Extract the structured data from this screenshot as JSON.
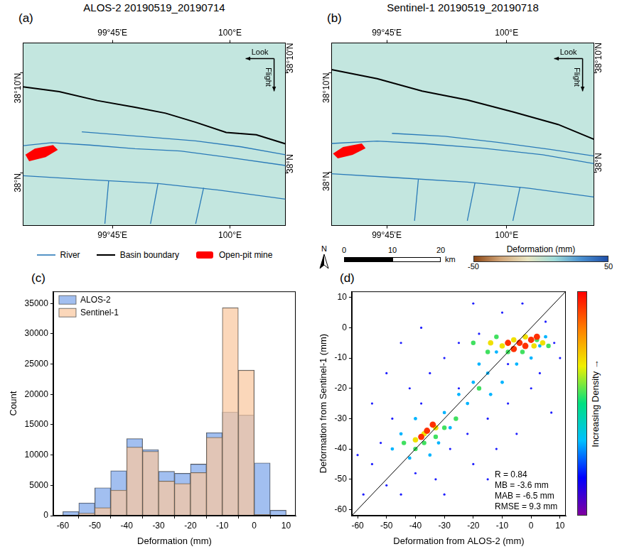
{
  "chart_data": [
    {
      "type": "map",
      "panel": "(a)",
      "title": "ALOS-2 20190519_20190714",
      "xlim": [
        99.56,
        100.118
      ],
      "ylim": [
        37.913,
        38.217
      ],
      "xticks": [
        {
          "value": 99.75,
          "label": "99°45'E"
        },
        {
          "value": 100,
          "label": "100°E"
        }
      ],
      "yticks": [
        {
          "value": 38,
          "label": "38°N"
        },
        {
          "value": 38.1667,
          "label": "38°10'N"
        }
      ],
      "series": [
        {
          "name": "River",
          "type": "river",
          "color": "#2a7ab8",
          "lines": [
            [
              [
                99.56,
                38.046
              ],
              [
                99.621,
                38.051
              ],
              [
                99.702,
                38.047
              ],
              [
                99.798,
                38.041
              ],
              [
                99.895,
                38.037
              ],
              [
                99.992,
                38.027
              ],
              [
                100.118,
                38.013
              ]
            ],
            [
              [
                99.685,
                38.069
              ],
              [
                99.815,
                38.061
              ],
              [
                99.927,
                38.054
              ],
              [
                100.024,
                38.044
              ],
              [
                100.118,
                38.031
              ]
            ],
            [
              [
                99.56,
                37.996
              ],
              [
                99.685,
                37.99
              ],
              [
                99.847,
                37.983
              ],
              [
                99.976,
                37.972
              ],
              [
                100.118,
                37.957
              ]
            ],
            [
              [
                99.734,
                37.916
              ],
              [
                99.742,
                37.987
              ]
            ],
            [
              [
                99.831,
                37.916
              ],
              [
                99.847,
                37.983
              ]
            ],
            [
              [
                99.927,
                37.916
              ],
              [
                99.944,
                37.976
              ]
            ]
          ]
        },
        {
          "name": "Basin boundary",
          "type": "boundary",
          "color": "#000000",
          "lines": [
            [
              [
                99.56,
                38.144
              ],
              [
                99.637,
                38.136
              ],
              [
                99.718,
                38.121
              ],
              [
                99.798,
                38.11
              ],
              [
                99.863,
                38.1
              ],
              [
                99.927,
                38.085
              ],
              [
                99.992,
                38.068
              ],
              [
                100.056,
                38.064
              ],
              [
                100.118,
                38.049
              ]
            ]
          ]
        },
        {
          "name": "Open-pit mine",
          "type": "polygon",
          "color": "#ff0000",
          "lines": [
            [
              [
                99.565,
                38.031
              ],
              [
                99.585,
                38.041
              ],
              [
                99.624,
                38.047
              ],
              [
                99.634,
                38.039
              ],
              [
                99.608,
                38.027
              ],
              [
                99.573,
                38.02
              ]
            ]
          ]
        }
      ],
      "annotations": [
        "Look",
        "Flight"
      ],
      "legend": "bottom"
    },
    {
      "type": "map",
      "panel": "(b)",
      "title": "Sentinel-1 20190519_20190718",
      "xlim": [
        99.635,
        100.182
      ],
      "ylim": [
        37.91,
        38.217
      ],
      "xticks": [
        {
          "value": 99.75,
          "label": "99°45'E"
        },
        {
          "value": 100,
          "label": "100°E"
        }
      ],
      "yticks": [
        {
          "value": 38,
          "label": "38°N"
        },
        {
          "value": 38.1667,
          "label": "38°10'N"
        }
      ],
      "series": [
        {
          "name": "River",
          "type": "river",
          "color": "#2a7ab8",
          "lines": [
            [
              [
                99.635,
                38.048
              ],
              [
                99.73,
                38.052
              ],
              [
                99.824,
                38.048
              ],
              [
                99.95,
                38.04
              ],
              [
                100.075,
                38.029
              ],
              [
                100.182,
                38.014
              ]
            ],
            [
              [
                99.761,
                38.065
              ],
              [
                99.871,
                38.06
              ],
              [
                99.981,
                38.05
              ],
              [
                100.091,
                38.038
              ],
              [
                100.182,
                38.027
              ]
            ],
            [
              [
                99.635,
                37.997
              ],
              [
                99.761,
                37.991
              ],
              [
                99.918,
                37.983
              ],
              [
                100.044,
                37.973
              ],
              [
                100.182,
                37.958
              ]
            ],
            [
              [
                99.808,
                37.918
              ],
              [
                99.816,
                37.988
              ]
            ],
            [
              [
                99.918,
                37.918
              ],
              [
                99.934,
                37.982
              ]
            ],
            [
              [
                100.013,
                37.918
              ],
              [
                100.028,
                37.975
              ]
            ]
          ]
        },
        {
          "name": "Basin boundary",
          "type": "boundary",
          "color": "#000000",
          "lines": [
            [
              [
                99.635,
                38.172
              ],
              [
                99.73,
                38.157
              ],
              [
                99.824,
                38.136
              ],
              [
                99.918,
                38.121
              ],
              [
                100.013,
                38.101
              ],
              [
                100.107,
                38.08
              ],
              [
                100.182,
                38.055
              ]
            ]
          ]
        },
        {
          "name": "Open-pit mine",
          "type": "polygon",
          "color": "#ff0000",
          "lines": [
            [
              [
                99.638,
                38.031
              ],
              [
                99.659,
                38.042
              ],
              [
                99.698,
                38.048
              ],
              [
                99.706,
                38.04
              ],
              [
                99.679,
                38.029
              ],
              [
                99.648,
                38.023
              ]
            ]
          ]
        }
      ],
      "annotations": [
        "Look",
        "Flight"
      ],
      "legend": false,
      "north": "N",
      "scale_bar": {
        "values": [
          0,
          10,
          20
        ],
        "unit": "km"
      },
      "colorbar": {
        "label": "Deformation (mm)",
        "range": [
          -50,
          50
        ],
        "ticks": [
          -50,
          50
        ],
        "colors": [
          "#8b4513",
          "#d2a679",
          "#e8e4c0",
          "#9fdbd8",
          "#4a90d0",
          "#1f4fa8"
        ]
      }
    },
    {
      "type": "histogram",
      "panel": "(c)",
      "bins": [
        -60,
        -55,
        -50,
        -45,
        -40,
        -35,
        -30,
        -25,
        -20,
        -15,
        -10,
        -5,
        0,
        5,
        10
      ],
      "series": [
        {
          "name": "ALOS-2",
          "color": "#7ea6ea",
          "values": [
            700,
            2100,
            4600,
            7400,
            12700,
            10900,
            7300,
            7000,
            8500,
            13700,
            17100,
            16600,
            8700,
            900
          ]
        },
        {
          "name": "Sentinel-1",
          "color": "#f9c8a0",
          "values": [
            100,
            400,
            1300,
            4200,
            11300,
            10600,
            5700,
            5300,
            7100,
            12900,
            34300,
            24000,
            200,
            0
          ]
        }
      ],
      "xlabel": "Deformation (mm)",
      "ylabel": "Count",
      "xlim": [
        -63,
        13
      ],
      "xticks": [
        -60,
        -50,
        -40,
        -30,
        -20,
        -10,
        0,
        10
      ],
      "ylim": [
        0,
        37000
      ],
      "yticks": [
        0,
        5000,
        10000,
        15000,
        20000,
        25000,
        30000,
        35000
      ],
      "legend": "upper left"
    },
    {
      "type": "scatter",
      "panel": "(d)",
      "xlabel": "Deformation from ALOS-2 (mm)",
      "ylabel": "Deformation from Sentinel-1 (mm)",
      "xlim": [
        -62,
        12
      ],
      "xticks": [
        -60,
        -50,
        -40,
        -30,
        -20,
        -10,
        0,
        10
      ],
      "ylim": [
        -62,
        12
      ],
      "yticks": [
        -60,
        -50,
        -40,
        -30,
        -20,
        -10,
        0,
        10
      ],
      "series": [
        {
          "color": "#1e1eff",
          "values": [
            [
              -58,
              -55
            ],
            [
              -55,
              -45
            ],
            [
              -50,
              -52
            ],
            [
              -52,
              -38
            ],
            [
              -48,
              -30
            ],
            [
              -45,
              -55
            ],
            [
              -42,
              -20
            ],
            [
              -40,
              -48
            ],
            [
              -38,
              -25
            ],
            [
              -35,
              -15
            ],
            [
              -33,
              -50
            ],
            [
              -30,
              -10
            ],
            [
              -28,
              -40
            ],
            [
              -25,
              -5
            ],
            [
              -22,
              -35
            ],
            [
              -20,
              -45
            ],
            [
              -18,
              -2
            ],
            [
              -15,
              -30
            ],
            [
              -12,
              -40
            ],
            [
              -10,
              5
            ],
            [
              -8,
              -25
            ],
            [
              -5,
              -35
            ],
            [
              -3,
              8
            ],
            [
              0,
              -20
            ],
            [
              3,
              -15
            ],
            [
              5,
              2
            ],
            [
              8,
              -5
            ],
            [
              10,
              -10
            ],
            [
              -45,
              -5
            ],
            [
              -55,
              -25
            ],
            [
              -60,
              -42
            ],
            [
              -38,
              0
            ],
            [
              -20,
              8
            ],
            [
              -15,
              -50
            ],
            [
              7,
              -28
            ],
            [
              -50,
              -15
            ],
            [
              -30,
              -55
            ],
            [
              -25,
              -20
            ],
            [
              -8,
              -12
            ]
          ]
        },
        {
          "color": "#00b4ff",
          "values": [
            [
              -48,
              -40
            ],
            [
              -45,
              -35
            ],
            [
              -42,
              -43
            ],
            [
              -40,
              -30
            ],
            [
              -35,
              -42
            ],
            [
              -30,
              -28
            ],
            [
              -28,
              -33
            ],
            [
              -25,
              -22
            ],
            [
              -22,
              -25
            ],
            [
              -20,
              -18
            ],
            [
              -18,
              -12
            ],
            [
              -15,
              -15
            ],
            [
              -12,
              -8
            ],
            [
              -10,
              -18
            ],
            [
              -5,
              -12
            ],
            [
              0,
              -10
            ],
            [
              3,
              -6
            ],
            [
              5,
              -3
            ],
            [
              -14,
              -22
            ],
            [
              -32,
              -38
            ]
          ]
        },
        {
          "color": "#40e060",
          "values": [
            [
              -44,
              -38
            ],
            [
              -40,
              -40
            ],
            [
              -37,
              -38
            ],
            [
              -33,
              -36
            ],
            [
              -30,
              -33
            ],
            [
              -15,
              -8
            ],
            [
              -12,
              -3
            ],
            [
              -8,
              -8
            ],
            [
              -3,
              -8
            ],
            [
              2,
              -4
            ],
            [
              6,
              -6
            ],
            [
              -20,
              -5
            ],
            [
              -18,
              -20
            ],
            [
              -26,
              -30
            ]
          ]
        },
        {
          "color": "#f0e000",
          "values": [
            [
              -40,
              -37
            ],
            [
              -37,
              -35
            ],
            [
              -33,
              -33
            ],
            [
              -10,
              -6
            ],
            [
              -6,
              -4
            ],
            [
              -2,
              -3
            ],
            [
              1,
              -6
            ],
            [
              4,
              -5
            ],
            [
              -14,
              -5
            ]
          ]
        },
        {
          "color": "#ff3000",
          "values": [
            [
              -36,
              -34
            ],
            [
              -34,
              -32
            ],
            [
              -38,
              -36
            ],
            [
              -8,
              -5
            ],
            [
              -4,
              -5
            ],
            [
              -2,
              -6
            ],
            [
              0,
              -4
            ],
            [
              -6,
              -7
            ],
            [
              2,
              -3
            ]
          ]
        }
      ],
      "reference_line": [
        [
          -62,
          -62
        ],
        [
          12,
          12
        ]
      ],
      "annotations": [
        "R = 0.84",
        "MB = -3.6 mm",
        "MAB = -6.5 mm",
        "RMSE = 9.3 mm"
      ],
      "colorbar": {
        "label": "Increasing Density →",
        "colors": [
          "#8000a0",
          "#0000ff",
          "#00c0ff",
          "#00e080",
          "#f0f000",
          "#ff8000",
          "#ff0000"
        ]
      },
      "legend": false
    }
  ]
}
